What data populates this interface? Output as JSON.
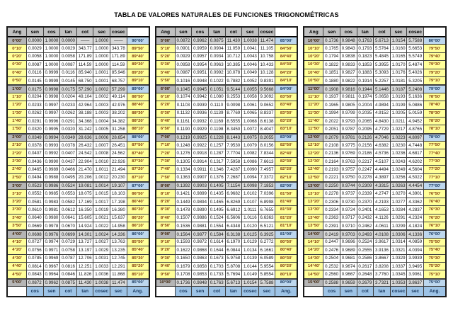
{
  "title": "TABLA DE VALORES NATURALES DE FUNCIONES TRIGONOMÉTRICAS",
  "headers": [
    "Ang",
    "sen",
    "cos",
    "tan",
    "cot",
    "sec",
    "cosec",
    ""
  ],
  "footer": [
    "",
    "cos",
    "sen",
    "cot",
    "tan",
    "cosec",
    "sec",
    "Ang."
  ],
  "colors": {
    "header_bg": "#c0c0c0",
    "row_yellow": "#ffff99",
    "deg_angle_gray": "#b5b5b5",
    "deg_row_bg": "#d9d9d9",
    "co_angle_blue": "#bdd7ee",
    "footer_bg": "#9dc3e6",
    "angle_text": "#843c0c",
    "footer_text": "#17375e",
    "grid_line": "#3f3f3f"
  },
  "panels": [
    {
      "range": "0°00' - 5°00'",
      "rows": [
        [
          "0°00'",
          "0.0000",
          "1.0000",
          "0.0000",
          "——",
          "1.0000",
          "——",
          "90°00'"
        ],
        [
          "0°10'",
          "0.0029",
          "1.0000",
          "0.0029",
          "343.77",
          "1.0000",
          "343.78",
          "89°50'"
        ],
        [
          "0°20'",
          "0.0058",
          "1.0000",
          "0.0058",
          "171.89",
          "1.0000",
          "171.89",
          "89°40'"
        ],
        [
          "0°30'",
          "0.0087",
          "1.0000",
          "0.0087",
          "114.59",
          "1.0000",
          "114.59",
          "89°30'"
        ],
        [
          "0°40'",
          "0.0116",
          "0.9999",
          "0.0116",
          "85.940",
          "1.0001",
          "85.946",
          "89°20'"
        ],
        [
          "0°50'",
          "0.0145",
          "0.9999",
          "0.0145",
          "68.750",
          "1.0001",
          "68.757",
          "89°10'"
        ],
        [
          "1°00'",
          "0.0175",
          "0.9998",
          "0.0175",
          "57.290",
          "1.0002",
          "57.299",
          "89°00'"
        ],
        [
          "1°10'",
          "0.0204",
          "0.9998",
          "0.0204",
          "49.104",
          "1.0002",
          "49.114",
          "88°50'"
        ],
        [
          "1°20'",
          "0.0233",
          "0.9997",
          "0.0233",
          "42.964",
          "1.0003",
          "42.976",
          "88°40'"
        ],
        [
          "1°30'",
          "0.0262",
          "0.9997",
          "0.0262",
          "38.188",
          "1.0003",
          "38.202",
          "88°30'"
        ],
        [
          "1°40'",
          "0.0291",
          "0.9996",
          "0.0291",
          "34.368",
          "1.0004",
          "34.382",
          "88°20'"
        ],
        [
          "1°50'",
          "0.0320",
          "0.9995",
          "0.0320",
          "31.242",
          "1.0005",
          "31.258",
          "88°10'"
        ],
        [
          "2°00'",
          "0.0349",
          "0.9994",
          "0.0349",
          "28.636",
          "1.0006",
          "28.654",
          "88°00'"
        ],
        [
          "2°10'",
          "0.0378",
          "0.9993",
          "0.0378",
          "26.432",
          "1.0007",
          "26.451",
          "87°50'"
        ],
        [
          "2°20'",
          "0.0407",
          "0.9992",
          "0.0407",
          "24.542",
          "1.0008",
          "24.562",
          "87°40'"
        ],
        [
          "2°30'",
          "0.0436",
          "0.9990",
          "0.0437",
          "22.904",
          "1.0010",
          "22.926",
          "87°30'"
        ],
        [
          "2°40'",
          "0.0465",
          "0.9989",
          "0.0466",
          "21.470",
          "1.0011",
          "21.494",
          "87°20'"
        ],
        [
          "2°50'",
          "0.0494",
          "0.9988",
          "0.0495",
          "20.206",
          "1.0012",
          "20.230",
          "87°10'"
        ],
        [
          "3°00'",
          "0.0523",
          "0.9986",
          "0.0524",
          "19.081",
          "1.0014",
          "19.107",
          "87°00'"
        ],
        [
          "3°10'",
          "0.0552",
          "0.9985",
          "0.0553",
          "18.075",
          "1.0015",
          "18.103",
          "86°50'"
        ],
        [
          "3°20'",
          "0.0581",
          "0.9983",
          "0.0582",
          "17.169",
          "1.0017",
          "17.198",
          "86°40'"
        ],
        [
          "3°30'",
          "0.0610",
          "0.9981",
          "0.0612",
          "16.350",
          "1.0019",
          "16.380",
          "86°30'"
        ],
        [
          "3°40'",
          "0.0640",
          "0.9980",
          "0.0641",
          "15.605",
          "1.0021",
          "15.637",
          "86°20'"
        ],
        [
          "3°50'",
          "0.0669",
          "0.9978",
          "0.0670",
          "14.924",
          "1.0022",
          "14.958",
          "86°10'"
        ],
        [
          "4°00'",
          "0.0698",
          "0.9976",
          "0.0699",
          "14.301",
          "1.0024",
          "14.336",
          "86°00'"
        ],
        [
          "4°10'",
          "0.0727",
          "0.9974",
          "0.0729",
          "13.727",
          "1.0027",
          "13.763",
          "85°50'"
        ],
        [
          "4°20'",
          "0.0756",
          "0.9971",
          "0.0758",
          "13.197",
          "1.0029",
          "13.235",
          "85°40'"
        ],
        [
          "4°30'",
          "0.0785",
          "0.9969",
          "0.0787",
          "12.706",
          "1.0031",
          "12.745",
          "85°30'"
        ],
        [
          "4°40'",
          "0.0814",
          "0.9967",
          "0.0816",
          "12.251",
          "1.0033",
          "12.291",
          "85°20'"
        ],
        [
          "4°50'",
          "0.0843",
          "0.9964",
          "0.0846",
          "11.826",
          "1.0036",
          "11.868",
          "85°10'"
        ],
        [
          "5°00'",
          "0.0872",
          "0.9962",
          "0.0875",
          "11.430",
          "1.0038",
          "11.474",
          "85°00'"
        ]
      ]
    },
    {
      "range": "5°00' - 10°00'",
      "rows": [
        [
          "5°00'",
          "0.0872",
          "0.9962",
          "0.0875",
          "11.430",
          "1.0038",
          "11.474",
          "85°00'"
        ],
        [
          "5°10'",
          "0.0901",
          "0.9959",
          "0.0904",
          "11.059",
          "1.0041",
          "11.105",
          "84°50'"
        ],
        [
          "5°20'",
          "0.0929",
          "0.9957",
          "0.0934",
          "10.712",
          "1.0043",
          "10.758",
          "84°40'"
        ],
        [
          "5°30'",
          "0.0958",
          "0.9954",
          "0.0963",
          "10.385",
          "1.0046",
          "10.433",
          "84°30'"
        ],
        [
          "5°40'",
          "0.0987",
          "0.9951",
          "0.0992",
          "10.078",
          "1.0049",
          "10.128",
          "84°20'"
        ],
        [
          "5°50'",
          "0.1016",
          "0.9948",
          "0.1022",
          "9.7882",
          "1.0052",
          "9.8391",
          "84°10'"
        ],
        [
          "6°00'",
          "0.1045",
          "0.9945",
          "0.1051",
          "9.5144",
          "1.0055",
          "9.5668",
          "84°00'"
        ],
        [
          "6°10'",
          "0.1074",
          "0.9942",
          "0.1080",
          "9.2553",
          "1.0058",
          "9.3092",
          "83°50'"
        ],
        [
          "6°20'",
          "0.1103",
          "0.9939",
          "0.1110",
          "9.0098",
          "1.0061",
          "9.0652",
          "83°40'"
        ],
        [
          "6°30'",
          "0.1132",
          "0.9936",
          "0.1139",
          "8.7769",
          "1.0065",
          "8.8337",
          "83°30'"
        ],
        [
          "6°40'",
          "0.1161",
          "0.9932",
          "0.1169",
          "8.5555",
          "1.0068",
          "8.6138",
          "83°20'"
        ],
        [
          "6°50'",
          "0.1190",
          "0.9929",
          "0.1198",
          "8.3450",
          "1.0072",
          "8.4047",
          "83°10'"
        ],
        [
          "7°00'",
          "0.1219",
          "0.9925",
          "0.1228",
          "8.1443",
          "1.0075",
          "8.2055",
          "83°00'"
        ],
        [
          "7°10'",
          "0.1248",
          "0.9922",
          "0.1257",
          "7.9530",
          "1.0079",
          "8.0156",
          "82°50'"
        ],
        [
          "7°20'",
          "0.1276",
          "0.9918",
          "0.1287",
          "7.7704",
          "1.0082",
          "7.8344",
          "82°40'"
        ],
        [
          "7°30'",
          "0.1305",
          "0.9914",
          "0.1317",
          "7.5958",
          "1.0086",
          "7.6613",
          "82°30'"
        ],
        [
          "7°40'",
          "0.1334",
          "0.9911",
          "0.1346",
          "7.4287",
          "1.0090",
          "7.4957",
          "82°20'"
        ],
        [
          "7°50'",
          "0.1363",
          "0.9907",
          "0.1376",
          "7.2687",
          "1.0094",
          "7.3372",
          "82°10'"
        ],
        [
          "8°00'",
          "0.1392",
          "0.9903",
          "0.1405",
          "7.1154",
          "1.0098",
          "7.1853",
          "82°00'"
        ],
        [
          "8°10'",
          "0.1421",
          "0.9899",
          "0.1435",
          "6.9682",
          "1.0102",
          "7.0396",
          "81°50'"
        ],
        [
          "8°20'",
          "0.1449",
          "0.9894",
          "0.1465",
          "6.8269",
          "1.0107",
          "6.8998",
          "81°40'"
        ],
        [
          "8°30'",
          "0.1478",
          "0.9890",
          "0.1495",
          "6.6912",
          "1.0111",
          "6.7655",
          "81°30'"
        ],
        [
          "8°40'",
          "0.1507",
          "0.9886",
          "0.1524",
          "6.5606",
          "1.0116",
          "6.6363",
          "81°20'"
        ],
        [
          "8°50'",
          "0.1536",
          "0.9881",
          "0.1554",
          "6.4348",
          "1.0120",
          "6.5121",
          "81°10'"
        ],
        [
          "9°00'",
          "0.1564",
          "0.9877",
          "0.1584",
          "6.3138",
          "1.0125",
          "6.3925",
          "81°00'"
        ],
        [
          "9°10'",
          "0.1593",
          "0.9872",
          "0.1614",
          "6.1970",
          "1.0129",
          "6.2772",
          "80°50'"
        ],
        [
          "9°20'",
          "0.1622",
          "0.9868",
          "0.1644",
          "6.0844",
          "1.0134",
          "6.1661",
          "80°40'"
        ],
        [
          "9°30'",
          "0.1650",
          "0.9863",
          "0.1673",
          "5.9758",
          "1.0139",
          "6.0589",
          "80°30'"
        ],
        [
          "9°40'",
          "0.1679",
          "0.9858",
          "0.1703",
          "5.8708",
          "1.0144",
          "5.9554",
          "80°20'"
        ],
        [
          "9°50'",
          "0.1708",
          "0.9853",
          "0.1733",
          "5.7694",
          "1.0149",
          "5.8554",
          "80°10'"
        ],
        [
          "10°00'",
          "0.1736",
          "0.9848",
          "0.1763",
          "5.6713",
          "1.0154",
          "5.7588",
          "80°00'"
        ]
      ]
    },
    {
      "range": "10°00' - 15°00'",
      "rows": [
        [
          "10°00'",
          "0.1736",
          "0.9848",
          "0.1763",
          "5.6713",
          "1.0154",
          "5.7588",
          "80°00'"
        ],
        [
          "10°10'",
          "0.1765",
          "0.9843",
          "0.1793",
          "5.5764",
          "1.0160",
          "5.6653",
          "79°50'"
        ],
        [
          "10°20'",
          "0.1794",
          "0.9838",
          "0.1823",
          "5.4845",
          "1.0165",
          "5.5749",
          "79°40'"
        ],
        [
          "10°30'",
          "0.1822",
          "0.9833",
          "0.1853",
          "5.3955",
          "1.0170",
          "5.4874",
          "79°30'"
        ],
        [
          "10°40'",
          "0.1851",
          "0.9827",
          "0.1883",
          "5.3093",
          "1.0176",
          "5.4026",
          "79°20'"
        ],
        [
          "10°50'",
          "0.1880",
          "0.9822",
          "0.1914",
          "5.2257",
          "1.0181",
          "5.3205",
          "79°10'"
        ],
        [
          "11°00'",
          "0.1908",
          "0.9816",
          "0.1944",
          "5.1446",
          "1.0187",
          "5.2408",
          "79°00'"
        ],
        [
          "11°10'",
          "0.1937",
          "0.9811",
          "0.1974",
          "5.0658",
          "1.0193",
          "5.1636",
          "78°50'"
        ],
        [
          "11°20'",
          "0.1965",
          "0.9805",
          "0.2004",
          "4.9894",
          "1.0199",
          "5.0886",
          "78°40'"
        ],
        [
          "11°30'",
          "0.1994",
          "0.9799",
          "0.2035",
          "4.9152",
          "1.0205",
          "5.0159",
          "78°30'"
        ],
        [
          "11°40'",
          "0.2022",
          "0.9793",
          "0.2065",
          "4.8430",
          "1.0211",
          "4.9452",
          "78°20'"
        ],
        [
          "11°50'",
          "0.2051",
          "0.9787",
          "0.2095",
          "4.7729",
          "1.0217",
          "4.8765",
          "78°10'"
        ],
        [
          "12°00'",
          "0.2079",
          "0.9781",
          "0.2126",
          "4.7046",
          "1.0223",
          "4.8097",
          "78°00'"
        ],
        [
          "12°10'",
          "0.2108",
          "0.9775",
          "0.2156",
          "4.6382",
          "1.0230",
          "4.7448",
          "77°50'"
        ],
        [
          "12°20'",
          "0.2136",
          "0.9769",
          "0.2186",
          "4.5736",
          "1.0236",
          "4.6817",
          "77°40'"
        ],
        [
          "12°30'",
          "0.2164",
          "0.9763",
          "0.2217",
          "4.5107",
          "1.0243",
          "4.6202",
          "77°30'"
        ],
        [
          "12°40'",
          "0.2193",
          "0.9757",
          "0.2247",
          "4.4494",
          "1.0249",
          "4.5604",
          "77°20'"
        ],
        [
          "12°50'",
          "0.2221",
          "0.9750",
          "0.2278",
          "4.3897",
          "1.0256",
          "4.5022",
          "77°10'"
        ],
        [
          "13°00'",
          "0.2250",
          "0.9744",
          "0.2309",
          "4.3315",
          "1.0263",
          "4.4454",
          "77°00'"
        ],
        [
          "13°10'",
          "0.2278",
          "0.9737",
          "0.2339",
          "4.2747",
          "1.0270",
          "4.3901",
          "76°50'"
        ],
        [
          "13°20'",
          "0.2306",
          "0.9730",
          "0.2370",
          "4.2193",
          "1.0277",
          "4.3362",
          "76°40'"
        ],
        [
          "13°30'",
          "0.2334",
          "0.9724",
          "0.2401",
          "4.1653",
          "1.0284",
          "4.2837",
          "76°30'"
        ],
        [
          "13°40'",
          "0.2363",
          "0.9717",
          "0.2432",
          "4.1126",
          "1.0291",
          "4.2324",
          "76°20'"
        ],
        [
          "13°50'",
          "0.2391",
          "0.9710",
          "0.2462",
          "4.0611",
          "1.0299",
          "4.1824",
          "76°10'"
        ],
        [
          "14°00'",
          "0.2419",
          "0.9703",
          "0.2493",
          "4.0108",
          "1.0306",
          "4.1336",
          "76°00'"
        ],
        [
          "14°10'",
          "0.2447",
          "0.9696",
          "0.2524",
          "3.9617",
          "1.0314",
          "4.0859",
          "75°50'"
        ],
        [
          "14°20'",
          "0.2476",
          "0.9689",
          "0.2555",
          "3.9136",
          "1.0321",
          "4.0394",
          "75°40'"
        ],
        [
          "14°30'",
          "0.2504",
          "0.9681",
          "0.2586",
          "3.8667",
          "1.0329",
          "3.9939",
          "75°30'"
        ],
        [
          "14°40'",
          "0.2532",
          "0.9674",
          "0.2617",
          "3.8208",
          "1.0337",
          "3.9495",
          "75°20'"
        ],
        [
          "14°50'",
          "0.2560",
          "0.9667",
          "0.2648",
          "3.7760",
          "1.0345",
          "3.9061",
          "75°10'"
        ],
        [
          "15°00'",
          "0.2588",
          "0.9659",
          "0.2679",
          "3.7321",
          "1.0353",
          "3.8637",
          "75°00'"
        ]
      ]
    }
  ]
}
